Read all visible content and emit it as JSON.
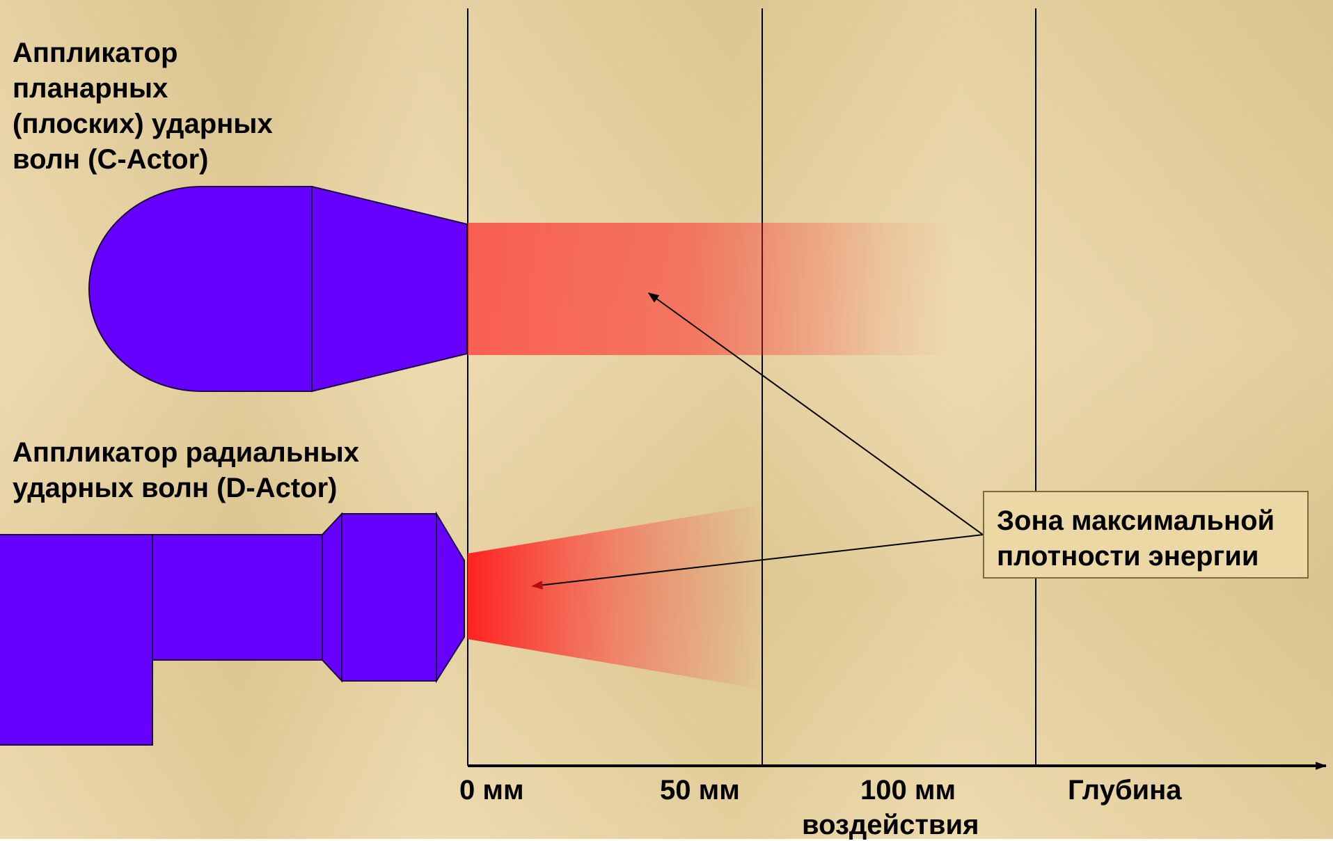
{
  "labels": {
    "c_actor": "Аппликатор\nпланарных\n(плоских) ударных\nволн (C-Actor)",
    "d_actor": "Аппликатор радиальных\nударных волн (D-Actor)",
    "callout": "Зона максимальной\nплотности энергии"
  },
  "axis": {
    "ticks": [
      "0 мм",
      "50 мм",
      "100 мм",
      "Глубина"
    ],
    "title_second_line": "воздействия"
  },
  "colors": {
    "applicator": "#6600ff",
    "energy_zone": "#ff2a2a",
    "background": "#e9d39d"
  }
}
